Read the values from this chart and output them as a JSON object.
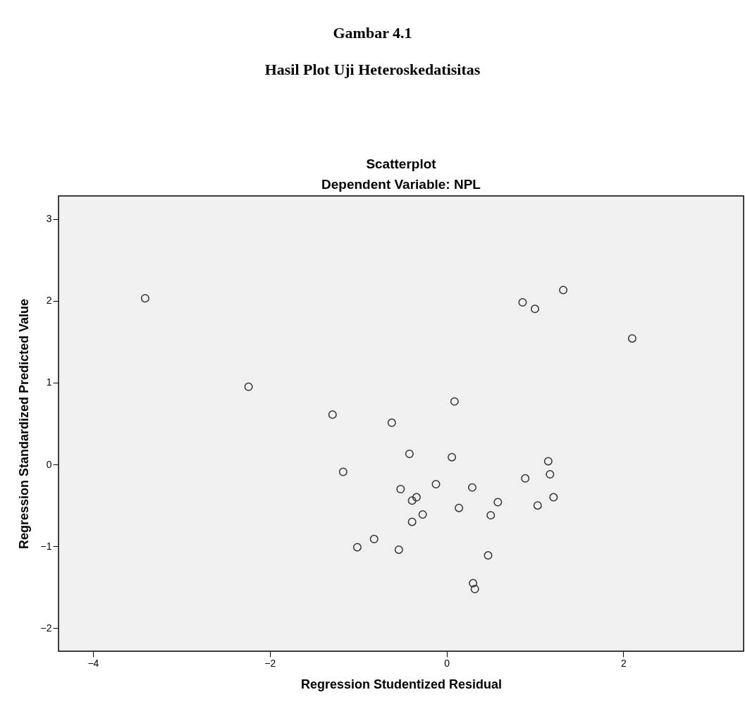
{
  "chart_data": {
    "type": "scatter",
    "title": "Scatterplot",
    "subtitle": "Dependent Variable: NPL",
    "xlabel": "Regression Studentized Residual",
    "ylabel": "Regression Standardized Predicted Value",
    "annotations": [
      "Gambar 4.1",
      "Hasil Plot Uji Heteroskedatisitas"
    ],
    "xlim": [
      -4.39,
      3.36
    ],
    "ylim": [
      -2.28,
      3.28
    ],
    "xticks": [
      -4,
      -2,
      0,
      2
    ],
    "yticks": [
      -2,
      -1,
      0,
      1,
      2,
      3
    ],
    "grid": false,
    "series": [
      {
        "color": "#333333",
        "x": [
          1.32,
          0.86,
          1.0,
          2.1,
          0.09,
          -1.29,
          -0.62,
          -0.42,
          0.06,
          -1.17,
          1.15,
          1.17,
          0.89,
          -0.52,
          -0.12,
          0.29,
          -0.34,
          -0.39,
          0.58,
          1.21,
          1.03,
          0.14,
          -0.27,
          0.5,
          -0.39,
          -0.82,
          -1.01,
          -0.54,
          0.47,
          0.3,
          0.32,
          -3.41,
          -2.24
        ],
        "values": [
          2.13,
          1.98,
          1.9,
          1.54,
          0.77,
          0.61,
          0.51,
          0.13,
          0.09,
          -0.09,
          0.04,
          -0.12,
          -0.17,
          -0.3,
          -0.24,
          -0.28,
          -0.4,
          -0.44,
          -0.46,
          -0.4,
          -0.5,
          -0.53,
          -0.61,
          -0.62,
          -0.7,
          -0.91,
          -1.01,
          -1.04,
          -1.11,
          -1.45,
          -1.52,
          2.03,
          0.95
        ]
      }
    ]
  }
}
